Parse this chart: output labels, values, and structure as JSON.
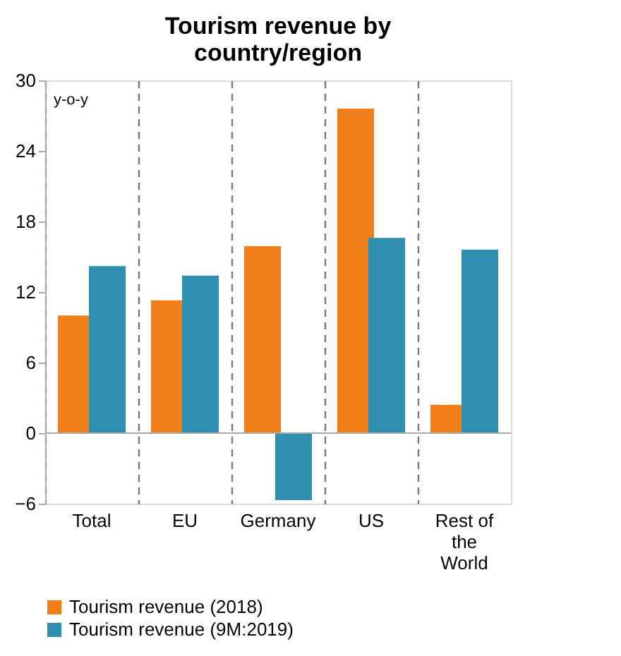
{
  "chart_data": {
    "type": "bar",
    "title": "Tourism revenue by country/region",
    "ylabel": "y-o-y",
    "categories": [
      "Total",
      "EU",
      "Germany",
      "US",
      "Rest of the World"
    ],
    "series": [
      {
        "name": "Tourism revenue (2018)",
        "color": "#f07f1a",
        "values": [
          10.0,
          11.3,
          15.9,
          27.6,
          2.4
        ]
      },
      {
        "name": "Tourism revenue (9M:2019)",
        "color": "#2f8fb0",
        "values": [
          14.2,
          13.4,
          -5.7,
          16.6,
          15.6
        ]
      }
    ],
    "ylim": [
      -6,
      30
    ],
    "yticks": [
      -6,
      0,
      6,
      12,
      18,
      24,
      30
    ],
    "grid": "x",
    "legend": "bottom"
  }
}
